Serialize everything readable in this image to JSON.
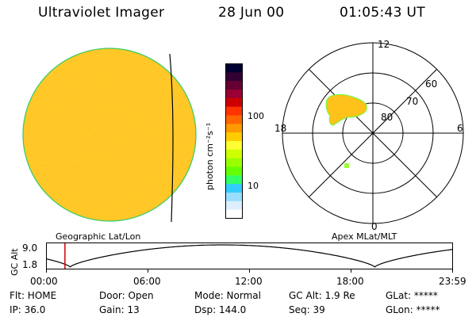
{
  "header": {
    "title": "Ultraviolet Imager",
    "date": "28 Jun 00",
    "time": "01:05:43 UT"
  },
  "left_panel": {
    "caption": "Geographic Lat/Lon"
  },
  "colorbar": {
    "unit_label": "photon cm⁻²s⁻¹",
    "ticks": [
      "100",
      "10"
    ],
    "colors": [
      "#000033",
      "#330033",
      "#660033",
      "#990033",
      "#cc0000",
      "#ff3300",
      "#ff6600",
      "#ff9900",
      "#ffcc00",
      "#ffff33",
      "#ccff00",
      "#99ff00",
      "#66ff00",
      "#33ff66",
      "#33ccff",
      "#99ddff",
      "#ddeeff",
      "#ffffff"
    ]
  },
  "right_panel": {
    "caption": "Apex MLat/MLT",
    "mlt_labels": {
      "top": "12",
      "bottom": "0",
      "left": "18",
      "right": "6"
    },
    "lat_labels": [
      "60",
      "70",
      "80"
    ]
  },
  "timeline": {
    "ylabel": "GC Alt",
    "ytick_top": "9.0",
    "ytick_bottom": "1.8",
    "xticks": [
      "00:00",
      "06:00",
      "12:00",
      "18:00",
      "23:59"
    ],
    "marker_time_hours": 1.095
  },
  "status": {
    "flt": "Flt: HOME",
    "ip": "IP: 36.0",
    "door": "Door: Open",
    "gain": "Gain: 13",
    "mode": "Mode: Normal",
    "dsp": "Dsp:  144.0",
    "gcalt": "GC Alt: 1.9 Re",
    "seq": "Seq: 39",
    "glat": "GLat: *****",
    "glon": "GLon: *****"
  }
}
